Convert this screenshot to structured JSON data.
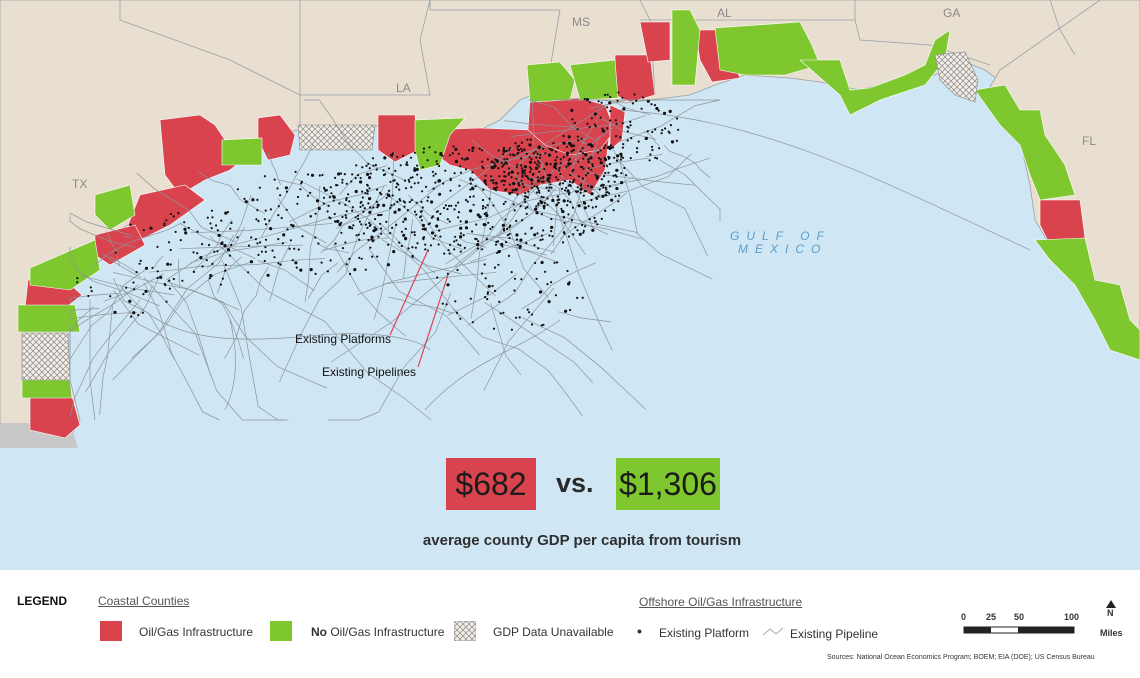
{
  "map": {
    "state_labels": [
      "TX",
      "LA",
      "MS",
      "AL",
      "GA",
      "FL"
    ],
    "water_label_line1": "GULF OF",
    "water_label_line2": "MEXICO",
    "annotations": {
      "platforms": "Existing Platforms",
      "pipelines": "Existing Pipelines"
    },
    "colors": {
      "land": "#e8dfd1",
      "water": "#cfe6f5",
      "oil_gas": "#d8434d",
      "no_oil_gas": "#7ec72e",
      "unavailable": "#f1ece4",
      "platform": "#111111",
      "pipeline": "#8c959c"
    }
  },
  "comparison": {
    "oil_gas_value": "$682",
    "vs": "vs.",
    "no_oil_gas_value": "$1,306",
    "caption": "average county GDP per capita from tourism"
  },
  "legend": {
    "title": "LEGEND",
    "coastal_heading": "Coastal Counties",
    "oil_gas_label": "Oil/Gas Infrastructure",
    "no_prefix": "No",
    "no_oil_gas_label": "Oil/Gas Infrastructure",
    "unavailable_label": "GDP Data Unavailable",
    "offshore_heading": "Offshore Oil/Gas Infrastructure",
    "platform_label": "Existing Platform",
    "pipeline_label": "Existing Pipeline"
  },
  "scale": {
    "ticks": [
      "0",
      "25",
      "50",
      "100"
    ],
    "unit": "Miles",
    "north": "N"
  },
  "sources": "Sources: National Ocean Economics Program; BOEM; EIA (DOE); US Census Bureau"
}
